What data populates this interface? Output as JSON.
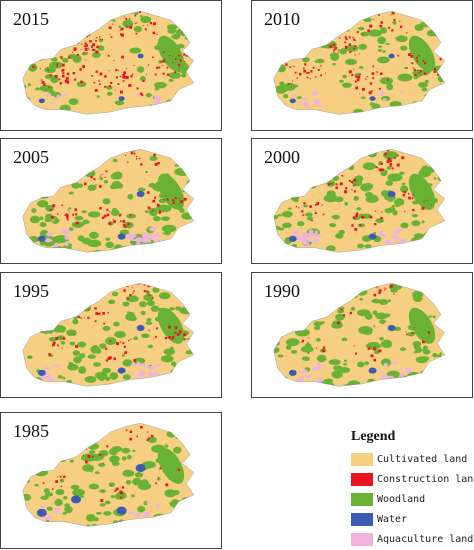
{
  "panels": [
    {
      "year": "2015",
      "built_level": "very high",
      "water_level": "low",
      "aqua_level": "low"
    },
    {
      "year": "2010",
      "built_level": "high",
      "water_level": "low",
      "aqua_level": "low"
    },
    {
      "year": "2005",
      "built_level": "medium",
      "water_level": "medium",
      "aqua_level": "high"
    },
    {
      "year": "2000",
      "built_level": "medium",
      "water_level": "medium",
      "aqua_level": "high"
    },
    {
      "year": "1995",
      "built_level": "medium",
      "water_level": "medium",
      "aqua_level": "medium"
    },
    {
      "year": "1990",
      "built_level": "low",
      "water_level": "medium",
      "aqua_level": "medium"
    },
    {
      "year": "1985",
      "built_level": "low",
      "water_level": "high",
      "aqua_level": "low"
    }
  ],
  "legend": {
    "title": "Legend",
    "items": [
      {
        "label": "Cultivated land",
        "color": "#f6cf82"
      },
      {
        "label": "Construction land",
        "color": "#e8141e"
      },
      {
        "label": "Woodland",
        "color": "#6ab234"
      },
      {
        "label": "Water",
        "color": "#3c5cb4"
      },
      {
        "label": "Aquaculture land",
        "color": "#f0b4dc"
      }
    ]
  }
}
